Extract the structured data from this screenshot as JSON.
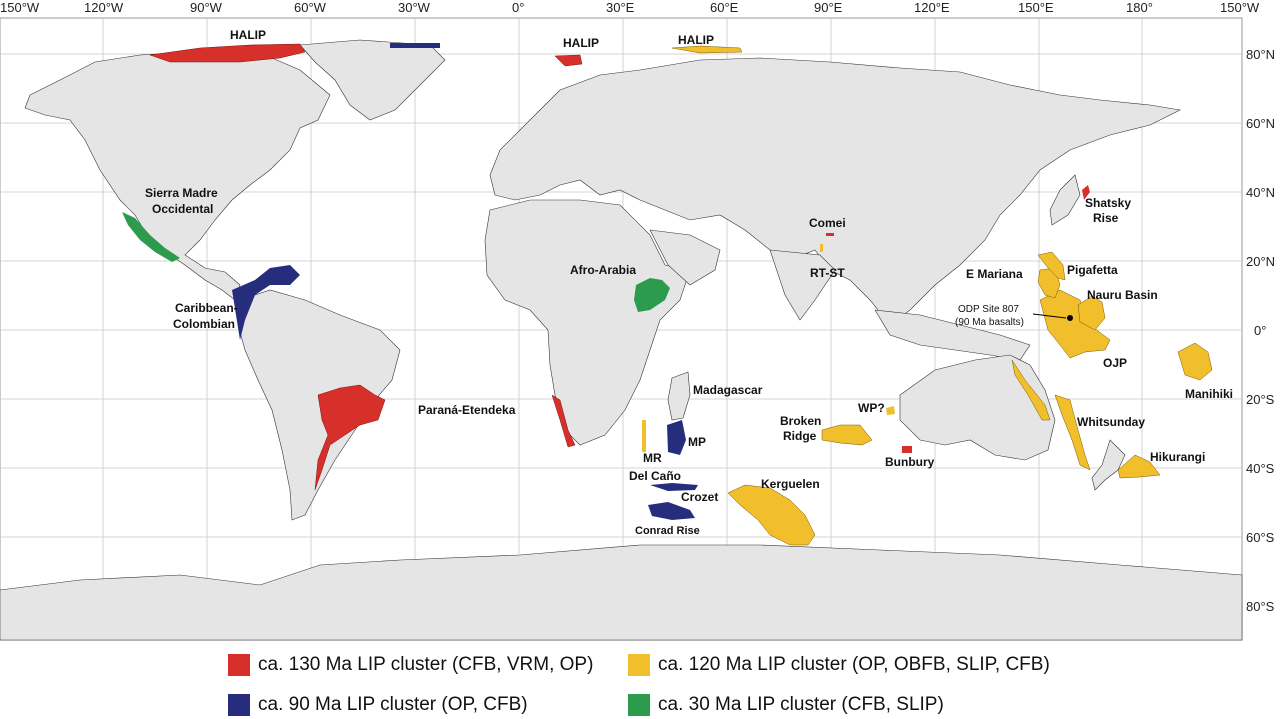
{
  "longitude_labels": [
    "150°W",
    "120°W",
    "90°W",
    "60°W",
    "30°W",
    "0°",
    "30°E",
    "60°E",
    "90°E",
    "120°E",
    "150°E",
    "180°",
    "150°W"
  ],
  "latitude_labels": [
    "80°N",
    "60°N",
    "40°N",
    "20°N",
    "0°",
    "20°S",
    "40°S",
    "60°S",
    "80°S"
  ],
  "colors": {
    "red": "#d7302b",
    "navy": "#262d7d",
    "yellow": "#f1bf2b",
    "green": "#2d9b4d",
    "land": "#e5e5e5",
    "grid": "#c8c8c8"
  },
  "map_labels": {
    "halip_canada": "HALIP",
    "halip_svalbard": "HALIP",
    "halip_fj": "HALIP",
    "sierra_madre": "Sierra Madre\nOccidental",
    "caribbean": "Caribbean-\nColombian",
    "parana": "Paraná-Etendeka",
    "afro_arabia": "Afro-Arabia",
    "comei": "Comei",
    "rt_st": "RT-ST",
    "madagascar": "Madagascar",
    "mp": "MP",
    "mr": "MR",
    "del_cano": "Del Caño",
    "crozet": "Crozet",
    "conrad": "Conrad Rise",
    "kerguelen": "Kerguelen",
    "broken_ridge": "Broken\nRidge",
    "wp": "WP?",
    "bunbury": "Bunbury",
    "shatsky": "Shatsky\nRise",
    "e_mariana": "E Mariana",
    "pigafetta": "Pigafetta",
    "nauru": "Nauru Basin",
    "odp": "ODP Site 807",
    "odp_sub": "(90 Ma basalts)",
    "ojp": "OJP",
    "manihiki": "Manihiki",
    "whitsunday": "Whitsunday",
    "hikurangi": "Hikurangi"
  },
  "legend": [
    {
      "color": "#d7302b",
      "label": "ca. 130 Ma LIP cluster (CFB, VRM, OP)"
    },
    {
      "color": "#f1bf2b",
      "label": "ca. 120 Ma LIP cluster (OP, OBFB, SLIP, CFB)"
    },
    {
      "color": "#262d7d",
      "label": "ca. 90 Ma LIP cluster (OP, CFB)"
    },
    {
      "color": "#2d9b4d",
      "label": "ca. 30 Ma LIP cluster (CFB, SLIP)"
    }
  ]
}
